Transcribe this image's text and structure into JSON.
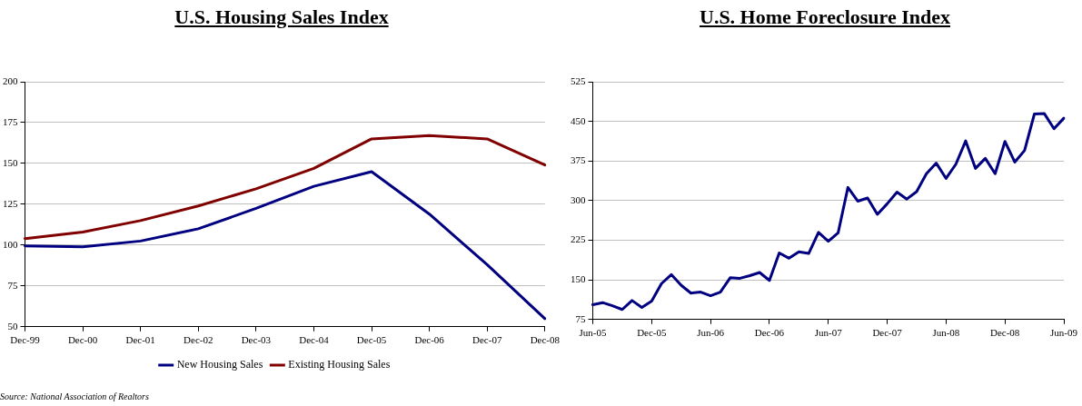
{
  "chart_data": [
    {
      "type": "line",
      "title": "U.S. Housing Sales Index",
      "categories": [
        "Dec-99",
        "Dec-00",
        "Dec-01",
        "Dec-02",
        "Dec-03",
        "Dec-04",
        "Dec-05",
        "Dec-06",
        "Dec-07",
        "Dec-08"
      ],
      "series": [
        {
          "name": "New Housing Sales",
          "color": "#000080",
          "values": [
            99.5,
            99,
            102.5,
            110,
            122.5,
            136,
            145,
            119,
            88,
            55
          ]
        },
        {
          "name": "Existing Housing Sales",
          "color": "#800000",
          "values": [
            104,
            108,
            115,
            124,
            134.5,
            147,
            165,
            167,
            165,
            149
          ]
        }
      ],
      "ylim": [
        50,
        200
      ],
      "yticks": [
        50,
        75,
        100,
        125,
        150,
        175,
        200
      ],
      "grid": "y",
      "legend": "bottom",
      "marker": "none",
      "line_style": "solid",
      "annotations": [
        "Source: National Association of Realtors"
      ]
    },
    {
      "type": "line",
      "title": "U.S. Home Foreclosure Index",
      "categories": [
        "Jun-05",
        null,
        null,
        null,
        null,
        null,
        "Dec-05",
        null,
        null,
        null,
        null,
        null,
        "Jun-06",
        null,
        null,
        null,
        null,
        null,
        "Dec-06",
        null,
        null,
        null,
        null,
        null,
        "Jun-07",
        null,
        null,
        null,
        null,
        null,
        "Dec-07",
        null,
        null,
        null,
        null,
        null,
        "Jun-08",
        null,
        null,
        null,
        null,
        null,
        "Dec-08",
        null,
        null,
        null,
        null,
        null,
        "Jun-09"
      ],
      "series": [
        {
          "color": "#000080",
          "values": [
            103,
            107,
            101,
            94,
            111,
            98,
            110,
            143,
            160,
            140,
            125,
            127,
            120,
            127,
            154,
            153,
            158,
            164,
            149,
            201,
            191,
            203,
            200,
            240,
            223,
            239,
            325,
            299,
            305,
            274,
            294,
            316,
            303,
            317,
            351,
            371,
            342,
            369,
            413,
            361,
            380,
            351,
            412,
            373,
            395,
            464,
            465,
            436,
            456
          ]
        }
      ],
      "ylim": [
        75,
        525
      ],
      "yticks": [
        75,
        150,
        225,
        300,
        375,
        450,
        525
      ],
      "grid": "y",
      "legend": false,
      "marker": "none",
      "line_style": "solid"
    }
  ]
}
